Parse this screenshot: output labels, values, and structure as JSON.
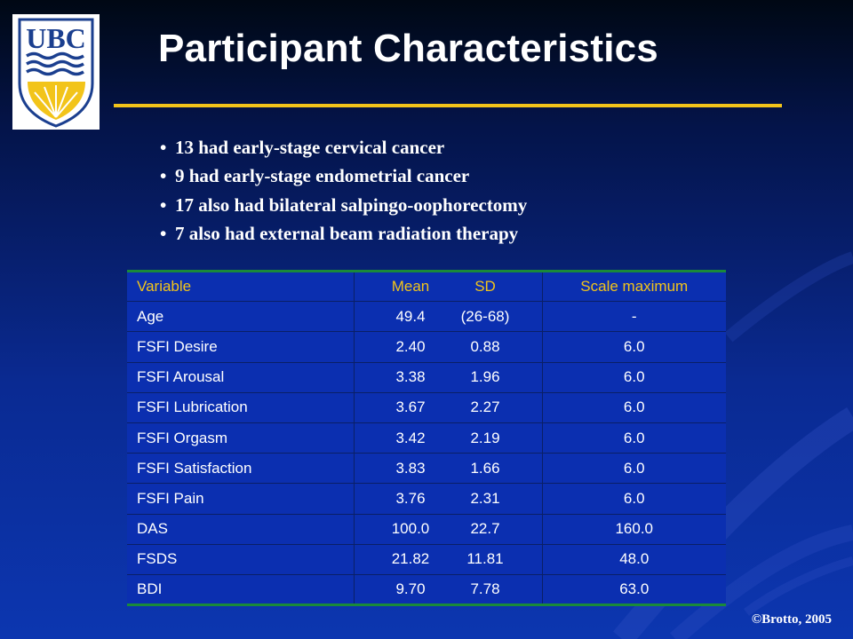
{
  "logo": {
    "text": "UBC"
  },
  "title": "Participant Characteristics",
  "bullets": [
    "13 had early-stage cervical cancer",
    "9 had early-stage endometrial cancer",
    "17 also had bilateral salpingo-oophorectomy",
    "7 also had external beam radiation therapy"
  ],
  "bullet_symbol": "•",
  "table": {
    "headers": {
      "variable": "Variable",
      "mean": "Mean",
      "sd": "SD",
      "scale": "Scale maximum"
    },
    "rows": [
      {
        "variable": "Age",
        "mean": "49.4",
        "sd": "(26-68)",
        "scale": "-"
      },
      {
        "variable": "FSFI Desire",
        "mean": "2.40",
        "sd": "0.88",
        "scale": "6.0"
      },
      {
        "variable": "FSFI Arousal",
        "mean": "3.38",
        "sd": "1.96",
        "scale": "6.0"
      },
      {
        "variable": "FSFI Lubrication",
        "mean": "3.67",
        "sd": "2.27",
        "scale": "6.0"
      },
      {
        "variable": "FSFI Orgasm",
        "mean": "3.42",
        "sd": "2.19",
        "scale": "6.0"
      },
      {
        "variable": "FSFI Satisfaction",
        "mean": "3.83",
        "sd": "1.66",
        "scale": "6.0"
      },
      {
        "variable": "FSFI Pain",
        "mean": "3.76",
        "sd": "2.31",
        "scale": "6.0"
      },
      {
        "variable": "DAS",
        "mean": "100.0",
        "sd": "22.7",
        "scale": "160.0"
      },
      {
        "variable": "FSDS",
        "mean": "21.82",
        "sd": "11.81",
        "scale": "48.0"
      },
      {
        "variable": "BDI",
        "mean": "9.70",
        "sd": "7.78",
        "scale": "63.0"
      }
    ]
  },
  "copyright": "©Brotto, 2005",
  "colors": {
    "background": "#0a2a92",
    "accent_gold": "#f2c41a",
    "table_rule_green": "#1a8a3a",
    "logo_blue": "#1b3f8f"
  }
}
